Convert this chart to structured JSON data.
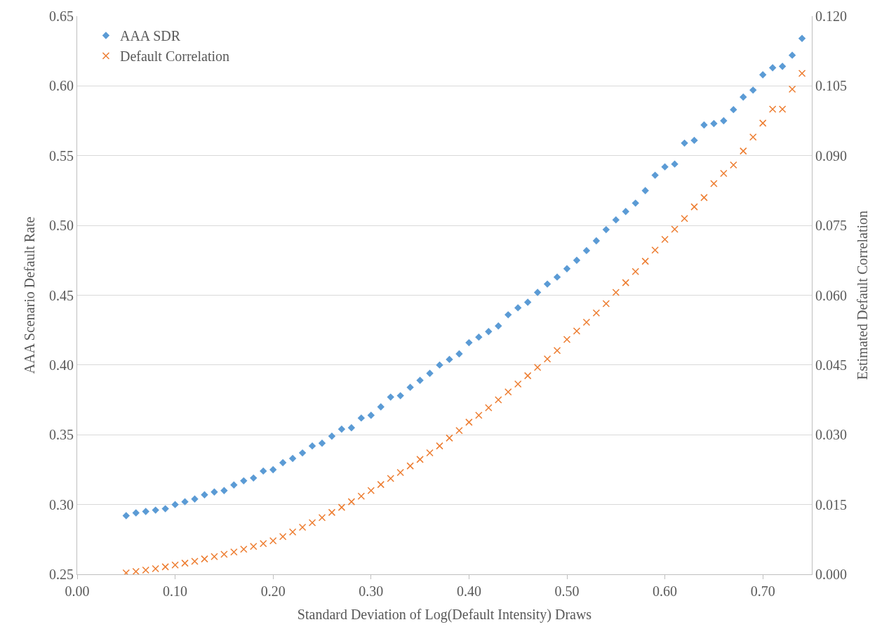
{
  "chart_data": {
    "type": "scatter",
    "xlabel": "Standard Deviation of Log(Default Intensity) Draws",
    "ylabel": "AAA Scenario Default Rate",
    "y2label": "Estimated Default Correlation",
    "x": [
      0.05,
      0.06,
      0.07,
      0.08,
      0.09,
      0.1,
      0.11,
      0.12,
      0.13,
      0.14,
      0.15,
      0.16,
      0.17,
      0.18,
      0.19,
      0.2,
      0.21,
      0.22,
      0.23,
      0.24,
      0.25,
      0.26,
      0.27,
      0.28,
      0.29,
      0.3,
      0.31,
      0.32,
      0.33,
      0.34,
      0.35,
      0.36,
      0.37,
      0.38,
      0.39,
      0.4,
      0.41,
      0.42,
      0.43,
      0.44,
      0.45,
      0.46,
      0.47,
      0.48,
      0.49,
      0.5,
      0.51,
      0.52,
      0.53,
      0.54,
      0.55,
      0.56,
      0.57,
      0.58,
      0.59,
      0.6,
      0.61,
      0.62,
      0.63,
      0.64,
      0.65,
      0.66,
      0.67,
      0.68,
      0.69,
      0.7,
      0.71,
      0.72,
      0.73,
      0.74
    ],
    "series": [
      {
        "name": "AAA SDR",
        "color": "#5b9bd5",
        "marker": "diamond",
        "values": [
          0.292,
          0.294,
          0.295,
          0.296,
          0.297,
          0.3,
          0.302,
          0.304,
          0.307,
          0.309,
          0.31,
          0.314,
          0.317,
          0.319,
          0.324,
          0.325,
          0.33,
          0.333,
          0.337,
          0.342,
          0.344,
          0.349,
          0.354,
          0.355,
          0.362,
          0.364,
          0.37,
          0.377,
          0.378,
          0.384,
          0.389,
          0.394,
          0.4,
          0.404,
          0.408,
          0.416,
          0.42,
          0.424,
          0.428,
          0.436,
          0.441,
          0.445,
          0.452,
          0.458,
          0.463,
          0.469,
          0.475,
          0.482,
          0.489,
          0.497,
          0.504,
          0.51,
          0.516,
          0.525,
          0.536,
          0.542,
          0.544,
          0.559,
          0.561,
          0.572,
          0.573,
          0.575,
          0.583,
          0.592,
          0.597,
          0.608,
          0.613,
          0.614,
          0.622,
          0.634
        ]
      },
      {
        "name": "Default Correlation",
        "color": "#ed7d31",
        "marker": "cross",
        "axis": "y2",
        "values": [
          0.0003,
          0.0006,
          0.0009,
          0.0012,
          0.0016,
          0.002,
          0.0024,
          0.0028,
          0.0033,
          0.0038,
          0.0043,
          0.0048,
          0.0054,
          0.006,
          0.0066,
          0.0072,
          0.0081,
          0.0091,
          0.0101,
          0.0111,
          0.0122,
          0.0133,
          0.0144,
          0.0156,
          0.0168,
          0.018,
          0.0193,
          0.0206,
          0.0219,
          0.0233,
          0.0247,
          0.0261,
          0.0276,
          0.0293,
          0.0309,
          0.0327,
          0.0342,
          0.0358,
          0.0375,
          0.0392,
          0.0409,
          0.0427,
          0.0445,
          0.0463,
          0.0481,
          0.0505,
          0.0523,
          0.0542,
          0.0562,
          0.0582,
          0.0606,
          0.0627,
          0.0651,
          0.0673,
          0.0697,
          0.072,
          0.0742,
          0.0765,
          0.079,
          0.081,
          0.084,
          0.0862,
          0.088,
          0.091,
          0.094,
          0.097,
          0.1,
          0.1,
          0.1043,
          0.1077
        ]
      }
    ],
    "xlim": [
      0,
      0.75
    ],
    "xticks": [
      {
        "value": 0,
        "label": "0.00"
      },
      {
        "value": 0.1,
        "label": "0.10"
      },
      {
        "value": 0.2,
        "label": "0.20"
      },
      {
        "value": 0.3,
        "label": "0.30"
      },
      {
        "value": 0.4,
        "label": "0.40"
      },
      {
        "value": 0.5,
        "label": "0.50"
      },
      {
        "value": 0.6,
        "label": "0.60"
      },
      {
        "value": 0.7,
        "label": "0.70"
      }
    ],
    "ylim": [
      0.25,
      0.65
    ],
    "yticks": [
      {
        "value": 0.25,
        "label": "0.25"
      },
      {
        "value": 0.3,
        "label": "0.30"
      },
      {
        "value": 0.35,
        "label": "0.35"
      },
      {
        "value": 0.4,
        "label": "0.40"
      },
      {
        "value": 0.45,
        "label": "0.45"
      },
      {
        "value": 0.5,
        "label": "0.50"
      },
      {
        "value": 0.55,
        "label": "0.55"
      },
      {
        "value": 0.6,
        "label": "0.60"
      },
      {
        "value": 0.65,
        "label": "0.65"
      }
    ],
    "y2lim": [
      0,
      0.12
    ],
    "y2ticks": [
      {
        "value": 0,
        "label": "0.000"
      },
      {
        "value": 0.015,
        "label": "0.015"
      },
      {
        "value": 0.03,
        "label": "0.030"
      },
      {
        "value": 0.045,
        "label": "0.045"
      },
      {
        "value": 0.06,
        "label": "0.060"
      },
      {
        "value": 0.075,
        "label": "0.075"
      },
      {
        "value": 0.09,
        "label": "0.090"
      },
      {
        "value": 0.105,
        "label": "0.105"
      },
      {
        "value": 0.12,
        "label": "0.120"
      }
    ],
    "grid": "y",
    "legend": "top left"
  }
}
